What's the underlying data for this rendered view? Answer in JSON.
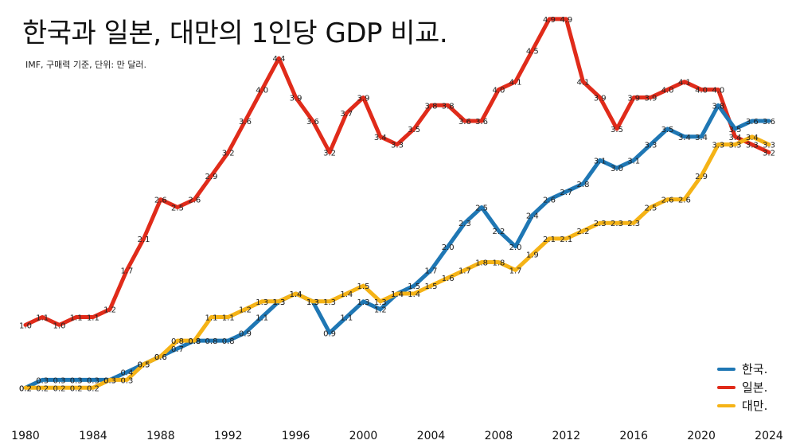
{
  "header": {
    "title": "한국과 일본, 대만의 1인당 GDP 비교.",
    "subtitle": "IMF, 구매력 기준, 단위: 만 달러."
  },
  "chart_data": {
    "type": "line",
    "title": "한국과 일본, 대만의 1인당 GDP 비교.",
    "subtitle": "IMF, 구매력 기준, 단위: 만 달러.",
    "xlabel": "",
    "ylabel": "",
    "x": [
      1980,
      1981,
      1982,
      1983,
      1984,
      1985,
      1986,
      1987,
      1988,
      1989,
      1990,
      1991,
      1992,
      1993,
      1994,
      1995,
      1996,
      1997,
      1998,
      1999,
      2000,
      2001,
      2002,
      2003,
      2004,
      2005,
      2006,
      2007,
      2008,
      2009,
      2010,
      2011,
      2012,
      2013,
      2014,
      2015,
      2016,
      2017,
      2018,
      2019,
      2020,
      2021,
      2022,
      2023,
      2024
    ],
    "xticks": [
      "1980",
      "1984",
      "1988",
      "1992",
      "1996",
      "2000",
      "2004",
      "2008",
      "2012",
      "2016",
      "2020",
      "2024"
    ],
    "xlim": [
      1980,
      2024
    ],
    "ylim": [
      0,
      5
    ],
    "grid": false,
    "legend_position": "bottom-right",
    "series": [
      {
        "name": "일본.",
        "color": "#e02b1a",
        "values": [
          1.0,
          1.1,
          1.0,
          1.1,
          1.1,
          1.2,
          1.7,
          2.1,
          2.6,
          2.5,
          2.6,
          2.9,
          3.2,
          3.6,
          4.0,
          4.4,
          3.9,
          3.6,
          3.2,
          3.7,
          3.9,
          3.4,
          3.3,
          3.5,
          3.8,
          3.8,
          3.6,
          3.6,
          4.0,
          4.1,
          4.5,
          4.9,
          4.9,
          4.1,
          3.9,
          3.5,
          3.9,
          3.9,
          4.0,
          4.1,
          4.0,
          4.0,
          3.4,
          3.3,
          3.2
        ]
      },
      {
        "name": "한국.",
        "color": "#1f77b4",
        "values": [
          0.2,
          0.3,
          0.3,
          0.3,
          0.3,
          0.3,
          0.4,
          0.5,
          0.6,
          0.7,
          0.8,
          0.8,
          0.8,
          0.9,
          1.1,
          1.3,
          1.4,
          1.3,
          0.9,
          1.1,
          1.3,
          1.2,
          1.4,
          1.5,
          1.7,
          2.0,
          2.3,
          2.5,
          2.2,
          2.0,
          2.4,
          2.6,
          2.7,
          2.8,
          3.1,
          3.0,
          3.1,
          3.3,
          3.5,
          3.4,
          3.4,
          3.8,
          3.5,
          3.6,
          3.6
        ]
      },
      {
        "name": "대만.",
        "color": "#f5b316",
        "values": [
          0.2,
          0.2,
          0.2,
          0.2,
          0.2,
          0.3,
          0.3,
          0.5,
          0.6,
          0.8,
          0.8,
          1.1,
          1.1,
          1.2,
          1.3,
          1.3,
          1.4,
          1.3,
          1.3,
          1.4,
          1.5,
          1.3,
          1.4,
          1.4,
          1.5,
          1.6,
          1.7,
          1.8,
          1.8,
          1.7,
          1.9,
          2.1,
          2.1,
          2.2,
          2.3,
          2.3,
          2.3,
          2.5,
          2.6,
          2.6,
          2.9,
          3.3,
          3.3,
          3.4,
          3.3
        ]
      }
    ],
    "legend": [
      "한국.",
      "일본.",
      "대만."
    ]
  }
}
